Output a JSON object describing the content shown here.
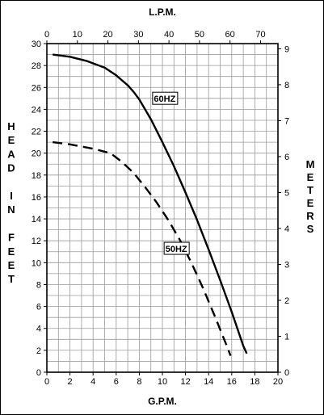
{
  "chart_data": {
    "type": "line",
    "top_axis_label": "L.P.M.",
    "bottom_axis_label": "G.P.M.",
    "left_axis_label": "HEAD IN FEET",
    "right_axis_label": "METERS",
    "x_gpm": {
      "lim": [
        0,
        20
      ],
      "ticks": [
        0,
        2,
        4,
        6,
        8,
        10,
        12,
        14,
        16,
        18,
        20
      ]
    },
    "x_lpm": {
      "lim": [
        0,
        75.7
      ],
      "ticks": [
        0,
        10,
        20,
        30,
        40,
        50,
        60,
        70
      ]
    },
    "y_feet": {
      "lim": [
        0,
        30
      ],
      "ticks": [
        0,
        2,
        4,
        6,
        8,
        10,
        12,
        14,
        16,
        18,
        20,
        22,
        24,
        26,
        28,
        30
      ]
    },
    "y_meters": {
      "lim": [
        0,
        9.144
      ],
      "ticks": [
        0,
        1,
        2,
        3,
        4,
        5,
        6,
        7,
        8,
        9
      ]
    },
    "grid": true,
    "series": [
      {
        "name": "60HZ",
        "style": "solid",
        "color": "#000000",
        "x": [
          0.5,
          2,
          3.5,
          5,
          6,
          7,
          7.5,
          8,
          9,
          10,
          11,
          12,
          13,
          14,
          15,
          16,
          17,
          17.3
        ],
        "y": [
          29,
          28.8,
          28.4,
          27.8,
          27.1,
          26.2,
          25.6,
          24.9,
          23.1,
          21.0,
          18.8,
          16.4,
          13.9,
          11.2,
          8.4,
          5.5,
          2.4,
          1.7
        ]
      },
      {
        "name": "50HZ",
        "style": "dashed",
        "color": "#000000",
        "x": [
          0.5,
          2,
          4,
          5.5,
          6.5,
          7.5,
          8.5,
          9.5,
          10.5,
          11.5,
          12.5,
          13.5,
          14.5,
          15.5,
          15.9
        ],
        "y": [
          21.0,
          20.8,
          20.4,
          20.0,
          19.2,
          18.2,
          16.9,
          15.5,
          13.9,
          12.1,
          10.0,
          7.7,
          5.2,
          2.6,
          1.5
        ]
      }
    ]
  }
}
